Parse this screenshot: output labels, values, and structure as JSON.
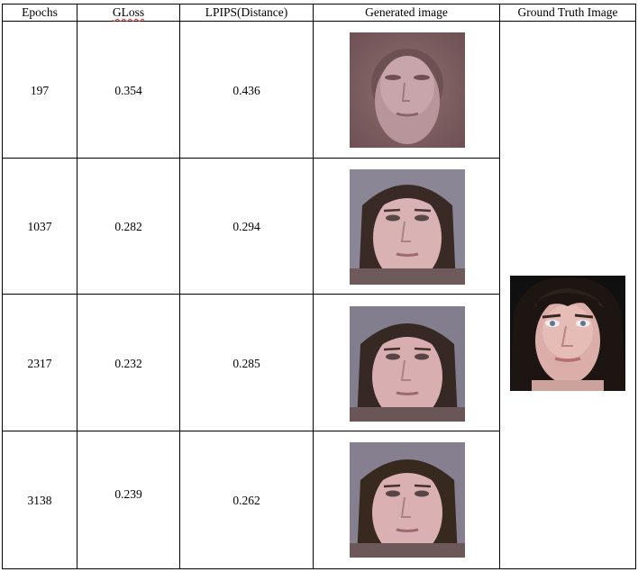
{
  "headers": {
    "epochs": "Epochs",
    "gloss": "GLoss",
    "lpips": "LPIPS(Distance)",
    "generated": "Generated image",
    "ground_truth": "Ground Truth Image"
  },
  "rows": [
    {
      "epochs": "197",
      "gloss": "0.354",
      "lpips": "0.436"
    },
    {
      "epochs": "1037",
      "gloss": "0.282",
      "lpips": "0.294"
    },
    {
      "epochs": "2317",
      "gloss": "0.232",
      "lpips": "0.285"
    },
    {
      "epochs": "3138",
      "gloss": "0.239",
      "lpips": "0.262"
    }
  ]
}
